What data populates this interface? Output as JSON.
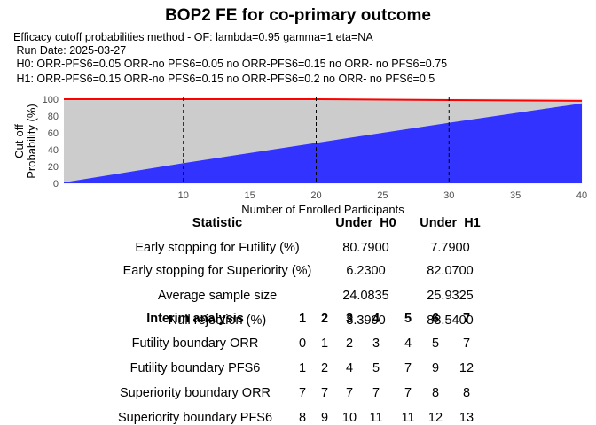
{
  "title": "BOP2 FE for co-primary outcome",
  "subtitle_lines": [
    "Efficacy cutoff probabilities method - OF: lambda=0.95 gamma=1 eta=NA",
    " Run Date: 2025-03-27",
    " H0: ORR-PFS6=0.05 ORR-no PFS6=0.05 no ORR-PFS6=0.15 no ORR- no PFS6=0.75",
    " H1: ORR-PFS6=0.15 ORR-no PFS6=0.15 no ORR-PFS6=0.2 no ORR- no PFS6=0.5"
  ],
  "chart_data": {
    "type": "area",
    "xlabel": "Number of Enrolled Participants",
    "ylabel": "Cut-off\nProbability (%)",
    "xlim": [
      1,
      40
    ],
    "ylim": [
      0,
      100
    ],
    "x_ticks": [
      10,
      15,
      20,
      25,
      30,
      35,
      40
    ],
    "y_ticks": [
      0,
      20,
      40,
      60,
      80,
      100
    ],
    "interim_lines_x": [
      10,
      20,
      30
    ],
    "series": [
      {
        "x": [
          1,
          10,
          20,
          30,
          40
        ],
        "y": [
          1,
          24,
          48,
          72,
          95
        ],
        "color": "#3333ff"
      },
      {
        "x": [
          1,
          10,
          20,
          30,
          40
        ],
        "y": [
          100,
          100,
          100,
          99,
          98
        ],
        "color": "#ff0000"
      }
    ],
    "band_color": "#cccccc",
    "grid": true
  },
  "stats_table": {
    "headers": [
      "Statistic",
      "Under_H0",
      "Under_H1"
    ],
    "rows": [
      [
        "Early stopping for Futility (%)",
        "80.7900",
        "7.7900"
      ],
      [
        "Early stopping for Superiority (%)",
        "6.2300",
        "82.0700"
      ],
      [
        "Average sample size",
        "24.0835",
        "25.9325"
      ],
      [
        "Null rejection (%)",
        "8.3900",
        "88.5400"
      ]
    ]
  },
  "boundary_table": {
    "headers": [
      "Interim analysis",
      "1",
      "2",
      "3",
      "4",
      "5",
      "6",
      "7"
    ],
    "rows": [
      [
        "Futility boundary ORR",
        "0",
        "1",
        "2",
        "3",
        "4",
        "5",
        "7"
      ],
      [
        "Futility boundary PFS6",
        "1",
        "2",
        "4",
        "5",
        "7",
        "9",
        "12"
      ],
      [
        "Superiority boundary ORR",
        "7",
        "7",
        "7",
        "7",
        "7",
        "8",
        "8"
      ],
      [
        "Superiority boundary PFS6",
        "8",
        "9",
        "10",
        "11",
        "11",
        "12",
        "13"
      ]
    ]
  }
}
